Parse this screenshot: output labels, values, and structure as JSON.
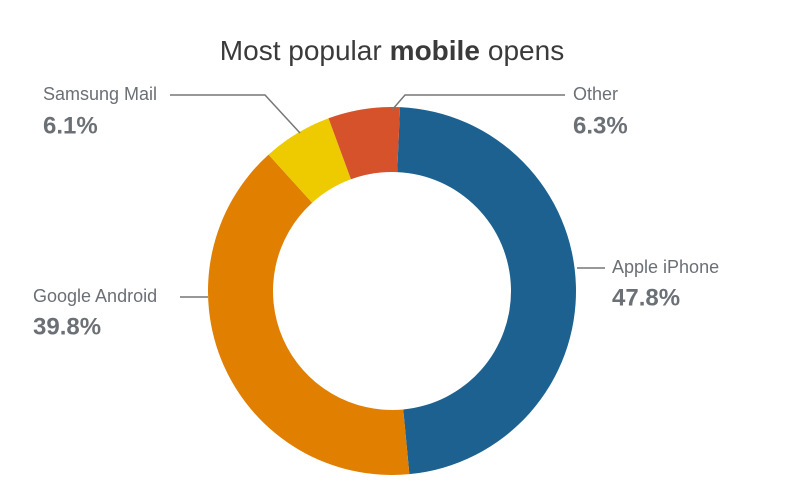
{
  "chart_data": {
    "type": "donut",
    "title": [
      "Most popular",
      "mobile",
      "opens"
    ],
    "categories": [
      "Apple iPhone",
      "Google Android",
      "Samsung Mail",
      "Other"
    ],
    "values": [
      47.8,
      39.8,
      6.1,
      6.3
    ],
    "value_labels": [
      "47.8%",
      "39.8%",
      "6.1%",
      "6.3%"
    ],
    "colors": [
      "#1c6190",
      "#e07f00",
      "#eecb00",
      "#d5522b"
    ]
  }
}
